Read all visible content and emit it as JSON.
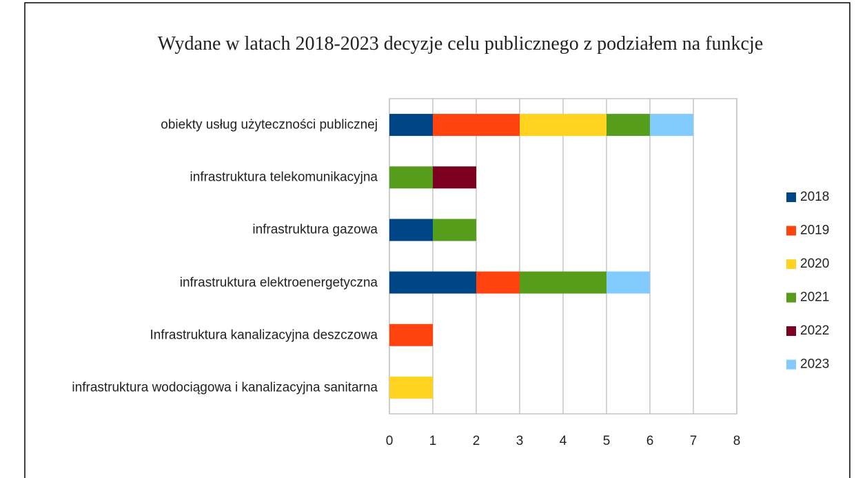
{
  "chart_data": {
    "type": "stacked_barh",
    "title": "Wydane w latach 2018-2023 decyzje celu publicznego z podziałem na funkcje",
    "categories": [
      "obiekty usług użyteczności publicznej",
      "infrastruktura telekomunikacyjna",
      "infrastruktura gazowa",
      "infrastruktura elektroenergetyczna",
      "Infrastruktura kanalizacyjna deszczowa",
      "infrastruktura wodociągowa i kanalizacyjna sanitarna"
    ],
    "series": [
      {
        "name": "2018",
        "color": "#004586",
        "values": [
          1,
          0,
          1,
          2,
          0,
          0
        ]
      },
      {
        "name": "2019",
        "color": "#ff420e",
        "values": [
          2,
          0,
          0,
          1,
          1,
          0
        ]
      },
      {
        "name": "2020",
        "color": "#ffd320",
        "values": [
          2,
          0,
          0,
          0,
          0,
          1
        ]
      },
      {
        "name": "2021",
        "color": "#579d1c",
        "values": [
          1,
          1,
          1,
          2,
          0,
          0
        ]
      },
      {
        "name": "2022",
        "color": "#7e0021",
        "values": [
          0,
          1,
          0,
          0,
          0,
          0
        ]
      },
      {
        "name": "2023",
        "color": "#83caff",
        "values": [
          1,
          0,
          0,
          1,
          0,
          0
        ]
      }
    ],
    "xlim": [
      0,
      8
    ],
    "xticks": [
      0,
      1,
      2,
      3,
      4,
      5,
      6,
      7,
      8
    ],
    "grid": true,
    "legend": "right"
  }
}
